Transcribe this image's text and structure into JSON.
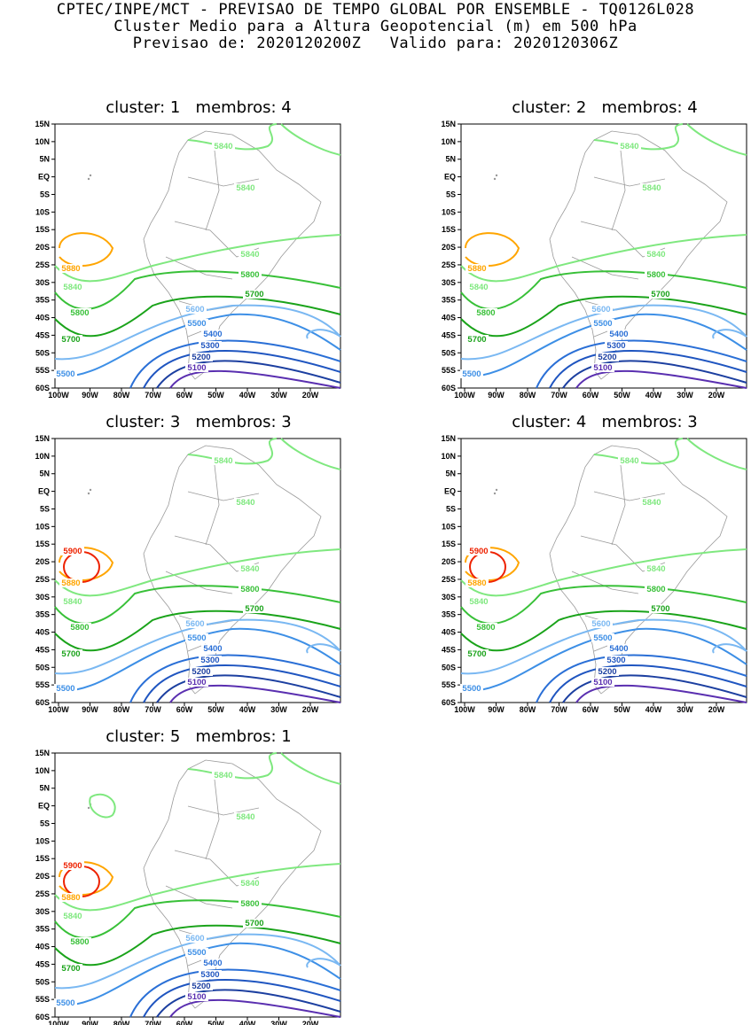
{
  "header": {
    "line1": "CPTEC/INPE/MCT - PREVISAO DE TEMPO GLOBAL POR ENSEMBLE - TQ0126L028",
    "line2": "Cluster Medio para a Altura Geopotencial (m) em 500 hPa",
    "line3": "Previsao de: 2020120200Z   Valido para: 2020120306Z"
  },
  "lat_ticks": [
    "15N",
    "10N",
    "5N",
    "EQ",
    "5S",
    "10S",
    "15S",
    "20S",
    "25S",
    "30S",
    "35S",
    "40S",
    "45S",
    "50S",
    "55S",
    "60S"
  ],
  "lon_ticks": [
    "100W",
    "90W",
    "80W",
    "70W",
    "60W",
    "50W",
    "40W",
    "30W",
    "20W"
  ],
  "colors": {
    "5100": "#5a2fb0",
    "5200": "#1c3fa0",
    "5300": "#1f55c0",
    "5400": "#2a6fd6",
    "5500": "#3d8fe6",
    "5600": "#7ab8f2",
    "5700": "#1aa31a",
    "5800": "#38c038",
    "5840": "#7fe87f",
    "5880": "#ffa500",
    "5900": "#ee2200",
    "coast": "#9a9a9a"
  },
  "panels": [
    {
      "title": "cluster: 1   membros: 4",
      "contour_labels": [
        "5100",
        "5200",
        "5300",
        "5400",
        "5500",
        "5600",
        "5700",
        "5800",
        "5840",
        "5840",
        "5840",
        "5880",
        "5500",
        "5700",
        "5800",
        "5840"
      ]
    },
    {
      "title": "cluster: 2   membros: 4",
      "contour_labels": [
        "5100",
        "5200",
        "5300",
        "5400",
        "5500",
        "5600",
        "5700",
        "5800",
        "5840",
        "5840",
        "5840",
        "5880",
        "5500",
        "5700",
        "5800",
        "5840"
      ]
    },
    {
      "title": "cluster: 3   membros: 3",
      "contour_labels": [
        "5100",
        "5200",
        "5300",
        "5400",
        "5500",
        "5600",
        "5700",
        "5800",
        "5840",
        "5840",
        "5840",
        "5880",
        "5500",
        "5700",
        "5800",
        "5840",
        "5900"
      ]
    },
    {
      "title": "cluster: 4   membros: 3",
      "contour_labels": [
        "5100",
        "5200",
        "5300",
        "5400",
        "5500",
        "5600",
        "5700",
        "5800",
        "5840",
        "5840",
        "5840",
        "5880",
        "5500",
        "5700",
        "5800",
        "5840",
        "5900"
      ]
    },
    {
      "title": "cluster: 5   membros: 1",
      "contour_labels": [
        "5100",
        "5200",
        "5300",
        "5400",
        "5500",
        "5600",
        "5700",
        "5800",
        "5840",
        "5840",
        "5840",
        "5880",
        "5500",
        "5700",
        "5800",
        "5840",
        "5900"
      ]
    }
  ]
}
